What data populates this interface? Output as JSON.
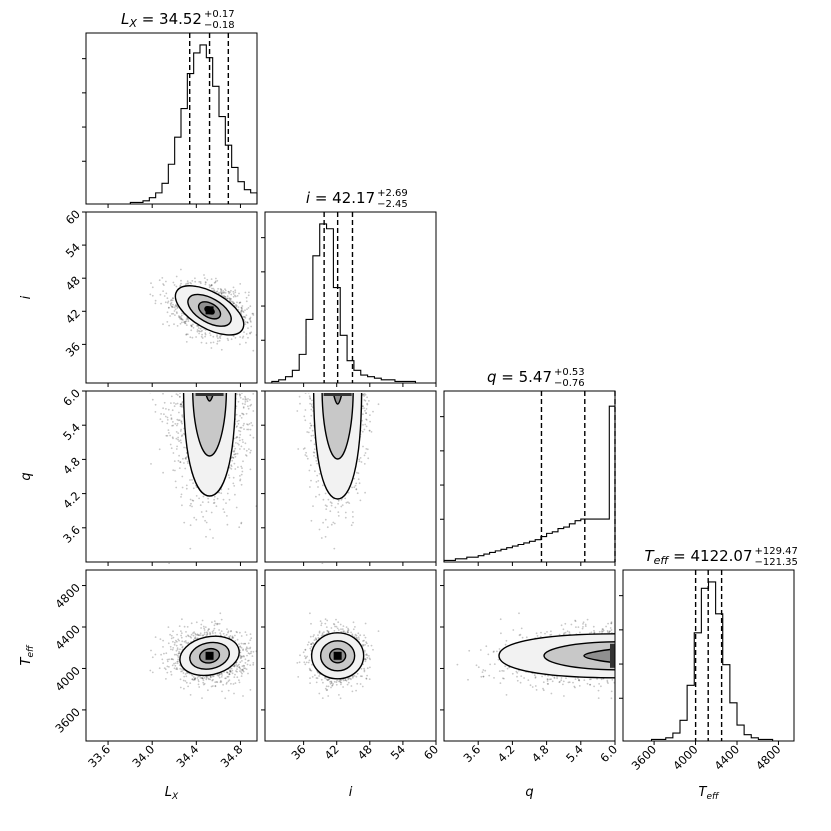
{
  "chart_data": {
    "type": "corner",
    "parameters": [
      {
        "key": "Lx",
        "label": "L",
        "label_sub": "X",
        "range": [
          33.4,
          34.95
        ],
        "ticks": [
          33.6,
          34.0,
          34.4,
          34.8
        ],
        "tick_labels": [
          "33.6",
          "34.0",
          "34.4",
          "34.8"
        ],
        "median": 34.52,
        "plus": 0.17,
        "minus": 0.18,
        "title_main": "L",
        "title_sub": "X",
        "title_value": " = 34.52",
        "title_plus": "+0.17",
        "title_minus": "−0.18",
        "hist": [
          0,
          0,
          0,
          0,
          0,
          0,
          0,
          0.01,
          0.01,
          0.02,
          0.04,
          0.07,
          0.13,
          0.25,
          0.42,
          0.6,
          0.82,
          0.95,
          1.0,
          0.92,
          0.74,
          0.55,
          0.37,
          0.23,
          0.14,
          0.09,
          0.07
        ]
      },
      {
        "key": "i",
        "label": "i",
        "label_sub": "",
        "range": [
          29,
          60
        ],
        "ticks": [
          36,
          42,
          48,
          54,
          60
        ],
        "tick_labels": [
          "36",
          "42",
          "48",
          "54",
          "60"
        ],
        "median": 42.17,
        "plus": 2.69,
        "minus": 2.45,
        "title_main": "i",
        "title_sub": "",
        "title_value": " = 42.17",
        "title_plus": "+2.69",
        "title_minus": "−2.45",
        "hist": [
          0.0,
          0.01,
          0.02,
          0.04,
          0.08,
          0.18,
          0.4,
          0.8,
          1.0,
          0.97,
          0.6,
          0.3,
          0.14,
          0.08,
          0.05,
          0.04,
          0.03,
          0.02,
          0.02,
          0.01,
          0.01,
          0.01,
          0.0,
          0.0,
          0.0
        ]
      },
      {
        "key": "q",
        "label": "q",
        "label_sub": "",
        "range": [
          3.0,
          6.0
        ],
        "ticks": [
          3.6,
          4.2,
          4.8,
          5.4,
          6.0
        ],
        "tick_labels": [
          "3.6",
          "4.2",
          "4.8",
          "5.4",
          "6.0"
        ],
        "median": 5.47,
        "plus": 0.53,
        "minus": 0.76,
        "title_main": "q",
        "title_sub": "",
        "title_value": " = 5.47",
        "title_plus": "+0.53",
        "title_minus": "−0.76",
        "hist": [
          0.01,
          0.01,
          0.02,
          0.02,
          0.03,
          0.03,
          0.04,
          0.05,
          0.06,
          0.07,
          0.08,
          0.09,
          0.1,
          0.11,
          0.12,
          0.13,
          0.14,
          0.16,
          0.18,
          0.19,
          0.21,
          0.22,
          0.24,
          0.26,
          0.27,
          0.27,
          0.27,
          0.27,
          0.27,
          0.98
        ]
      },
      {
        "key": "Teff",
        "label": "T",
        "label_sub": "eff",
        "range": [
          3300,
          4950
        ],
        "ticks": [
          3600,
          4000,
          4400,
          4800
        ],
        "tick_labels": [
          "3600",
          "4000",
          "4400",
          "4800"
        ],
        "median": 4122.07,
        "plus": 129.47,
        "minus": 121.35,
        "title_main": "T",
        "title_sub": "eff",
        "title_value": " = 4122.07",
        "title_plus": "+129.47",
        "title_minus": "−121.35",
        "hist": [
          0,
          0,
          0,
          0,
          0.01,
          0.01,
          0.02,
          0.05,
          0.13,
          0.35,
          0.68,
          0.96,
          1.0,
          0.8,
          0.48,
          0.24,
          0.1,
          0.04,
          0.02,
          0.01,
          0.01,
          0,
          0,
          0
        ]
      }
    ],
    "y_tick_params": {
      "i": [
        36,
        42,
        48,
        54,
        60
      ],
      "q": [
        3.6,
        4.2,
        4.8,
        5.4,
        6.0
      ],
      "Teff": [
        3600,
        4000,
        4400,
        4800
      ]
    },
    "quantile_lines": "dashed",
    "density_scatter": true,
    "contours": true
  }
}
